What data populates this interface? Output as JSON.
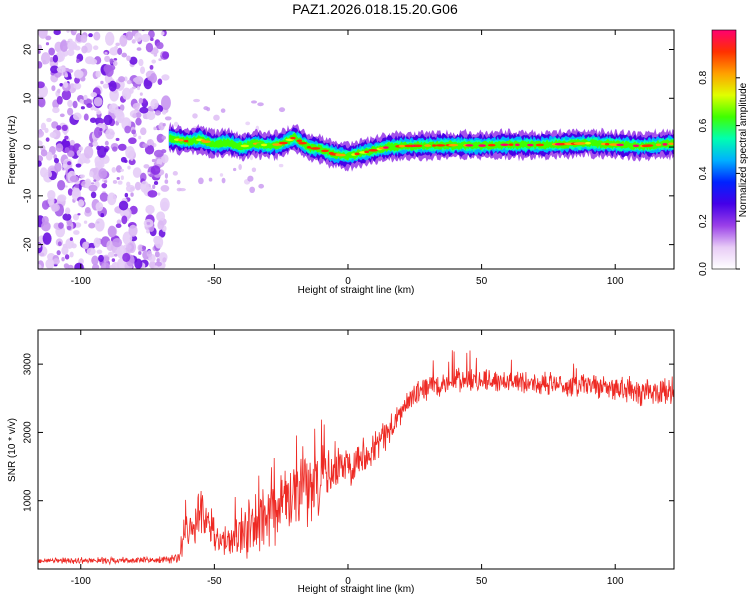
{
  "figure": {
    "title": "PAZ1.2026.018.15.20.G06"
  },
  "chart_data": [
    {
      "type": "heatmap",
      "title": "",
      "xlabel": "Height of straight line (km)",
      "ylabel": "Frequency (Hz)",
      "xlim": [
        -116,
        122
      ],
      "ylim": [
        -25,
        24
      ],
      "xticks": [
        -100,
        -50,
        0,
        50,
        100
      ],
      "yticks": [
        -20,
        -10,
        0,
        10,
        20
      ],
      "colorbar": {
        "label": "Normalized spectral amplitude",
        "range": [
          0,
          1
        ],
        "ticks": [
          "0.0",
          "0.2",
          "0.4",
          "0.6",
          "0.8"
        ],
        "tick_values": [
          0.0,
          0.2,
          0.4,
          0.6,
          0.8
        ],
        "colormap": [
          "#ffffff",
          "#e8ccf6",
          "#9a40e8",
          "#4400e8",
          "#0022ff",
          "#00b0ff",
          "#00ffb0",
          "#40ff00",
          "#e0ff00",
          "#ffa000",
          "#ff3000",
          "#ff0070"
        ]
      },
      "noise_region_x": [
        -116,
        -68
      ],
      "ridge": {
        "x": [
          -67,
          -60,
          -55,
          -50,
          -45,
          -40,
          -35,
          -30,
          -25,
          -20,
          -15,
          -10,
          -5,
          0,
          5,
          10,
          15,
          20,
          30,
          40,
          50,
          60,
          70,
          80,
          90,
          100,
          110,
          122
        ],
        "freq": [
          1.8,
          1.2,
          1.5,
          0.5,
          1.0,
          0.0,
          0.8,
          0.3,
          0.6,
          2.0,
          0.0,
          -0.5,
          -1.5,
          -1.8,
          -1.2,
          -0.6,
          0.0,
          0.2,
          0.3,
          0.4,
          0.3,
          0.5,
          0.4,
          0.6,
          0.8,
          0.5,
          0.2,
          0.7
        ]
      }
    },
    {
      "type": "line",
      "title": "",
      "xlabel": "Height of straight line (km)",
      "ylabel": "SNR (10 * v/v)",
      "xlim": [
        -116,
        122
      ],
      "ylim": [
        0,
        3500
      ],
      "xticks": [
        -100,
        -50,
        0,
        50,
        100
      ],
      "yticks": [
        1000,
        2000,
        3000
      ],
      "series": [
        {
          "name": "SNR",
          "color": "#ee2a24",
          "envelope": {
            "x": [
              -116,
              -68,
              -63,
              -60,
              -55,
              -50,
              -45,
              -40,
              -35,
              -30,
              -25,
              -20,
              -15,
              -10,
              -5,
              0,
              5,
              10,
              15,
              20,
              25,
              30,
              40,
              50,
              60,
              70,
              80,
              90,
              100,
              110,
              122
            ],
            "base": [
              120,
              130,
              180,
              650,
              750,
              450,
              350,
              550,
              600,
              750,
              900,
              1100,
              1200,
              1300,
              1450,
              1550,
              1650,
              1800,
              2000,
              2300,
              2550,
              2650,
              2750,
              2750,
              2750,
              2720,
              2700,
              2680,
              2650,
              2600,
              2580
            ],
            "spread": [
              50,
              60,
              120,
              350,
              400,
              300,
              250,
              450,
              450,
              550,
              650,
              650,
              600,
              500,
              450,
              380,
              330,
              300,
              280,
              250,
              220,
              200,
              200,
              200,
              200,
              200,
              220,
              220,
              220,
              240,
              250
            ]
          }
        }
      ]
    }
  ]
}
